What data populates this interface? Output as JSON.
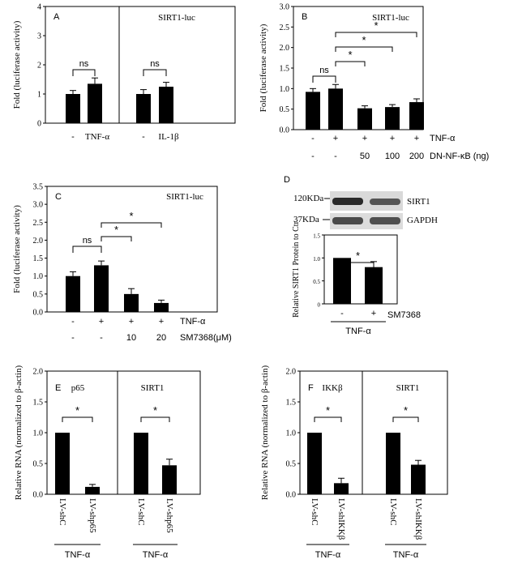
{
  "chart_data": [
    {
      "panel": "A",
      "type": "bar",
      "ylabel": "Fold (luciferase activity)",
      "ylim": [
        0,
        4
      ],
      "yticks": [
        "0",
        "1",
        "2",
        "3",
        "4"
      ],
      "groups": [
        {
          "title": "",
          "categories": [
            "-",
            "TNF-α"
          ],
          "values": [
            1.0,
            1.35
          ],
          "errors": [
            0.12,
            0.2
          ]
        },
        {
          "title": "SIRT1-luc",
          "categories": [
            "-",
            "IL-1β"
          ],
          "values": [
            1.0,
            1.25
          ],
          "errors": [
            0.15,
            0.15
          ]
        }
      ],
      "annotations": [
        "ns",
        "ns"
      ]
    },
    {
      "panel": "B",
      "type": "bar",
      "title": "SIRT1-luc",
      "ylabel": "Fold (luciferase activity)",
      "ylim": [
        0,
        3.0
      ],
      "yticks": [
        "0.0",
        "0.5",
        "1.0",
        "1.5",
        "2.0",
        "2.5",
        "3.0"
      ],
      "values": [
        0.92,
        1.0,
        0.52,
        0.55,
        0.67
      ],
      "errors": [
        0.08,
        0.1,
        0.06,
        0.06,
        0.08
      ],
      "condition_rows": [
        {
          "label": "TNF-α",
          "cells": [
            "-",
            "+",
            "+",
            "+",
            "+"
          ]
        },
        {
          "label": "DN-NF-κB (ng)",
          "cells": [
            "-",
            "-",
            "50",
            "100",
            "200"
          ]
        }
      ],
      "annotations": [
        "ns",
        "*",
        "*",
        "*"
      ]
    },
    {
      "panel": "C",
      "type": "bar",
      "title": "SIRT1-luc",
      "ylabel": "Fold (luciferase activity)",
      "ylim": [
        0,
        3.5
      ],
      "yticks": [
        "0.0",
        "0.5",
        "1.0",
        "1.5",
        "2.0",
        "2.5",
        "3.0",
        "3.5"
      ],
      "values": [
        1.0,
        1.3,
        0.5,
        0.25
      ],
      "errors": [
        0.12,
        0.12,
        0.15,
        0.08
      ],
      "condition_rows": [
        {
          "label": "TNF-α",
          "cells": [
            "-",
            "+",
            "+",
            "+"
          ]
        },
        {
          "label": "SM7368(μM)",
          "cells": [
            "-",
            "-",
            "10",
            "20"
          ]
        }
      ],
      "annotations": [
        "ns",
        "*",
        "*"
      ]
    },
    {
      "panel": "D",
      "type": "bar",
      "blot_labels": [
        "SIRT1",
        "GAPDH"
      ],
      "mw_labels": [
        "120KDa",
        "37KDa"
      ],
      "ylabel": "Relative SIRT1 Protein to Ctr",
      "ylim": [
        0,
        1.5
      ],
      "yticks": [
        "0",
        "0.5",
        "1.0",
        "1.5"
      ],
      "values": [
        1.0,
        0.8
      ],
      "errors": [
        0,
        0.12
      ],
      "condition_rows": [
        {
          "label": "SM7368",
          "cells": [
            "-",
            "+"
          ]
        }
      ],
      "group_label": "TNF-α",
      "annotations": [
        "*"
      ]
    },
    {
      "panel": "E",
      "type": "bar",
      "ylabel": "Relative RNA (normalized to β-actin)",
      "ylim": [
        0,
        2.0
      ],
      "yticks": [
        "0.0",
        "0.5",
        "1.0",
        "1.5",
        "2.0"
      ],
      "groups": [
        {
          "title": "p65",
          "categories": [
            "LV-shC",
            "LV-shp65"
          ],
          "values": [
            1.0,
            0.12
          ],
          "errors": [
            0,
            0.04
          ],
          "group_label": "TNF-α"
        },
        {
          "title": "SIRT1",
          "categories": [
            "LV-shC",
            "LV-shp65"
          ],
          "values": [
            1.0,
            0.47
          ],
          "errors": [
            0,
            0.1
          ],
          "group_label": "TNF-α"
        }
      ],
      "annotations": [
        "*",
        "*"
      ]
    },
    {
      "panel": "F",
      "type": "bar",
      "ylabel": "Relative RNA (normalized to β-actin)",
      "ylim": [
        0,
        2.0
      ],
      "yticks": [
        "0.0",
        "0.5",
        "1.0",
        "1.5",
        "2.0"
      ],
      "groups": [
        {
          "title": "IKKβ",
          "categories": [
            "LV-shC",
            "LV-shIKKβ"
          ],
          "values": [
            1.0,
            0.18
          ],
          "errors": [
            0,
            0.08
          ],
          "group_label": "TNF-α"
        },
        {
          "title": "SIRT1",
          "categories": [
            "LV-shC",
            "LV-shIKKβ"
          ],
          "values": [
            1.0,
            0.48
          ],
          "errors": [
            0,
            0.07
          ],
          "group_label": "TNF-α"
        }
      ],
      "annotations": [
        "*",
        "*"
      ]
    }
  ]
}
